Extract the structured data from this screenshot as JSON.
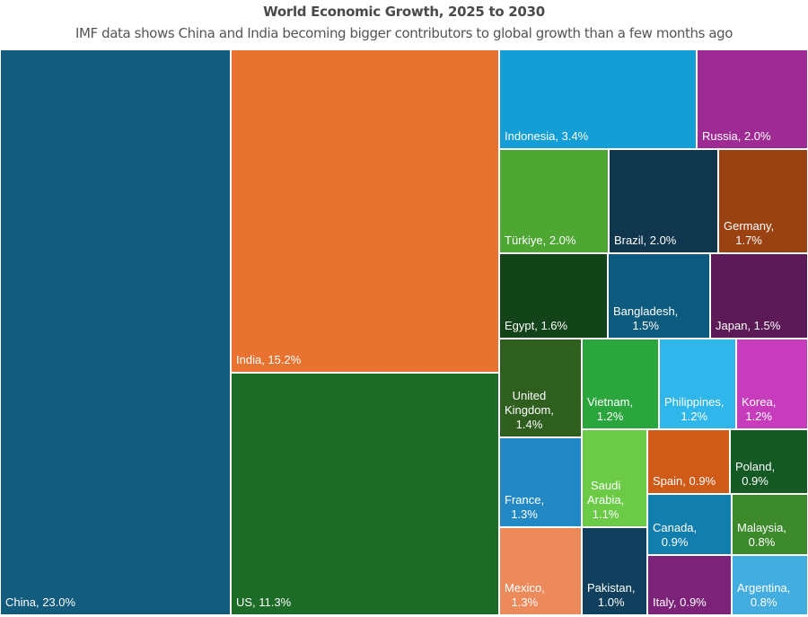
{
  "chart_data": {
    "type": "treemap",
    "title": "World Economic Growth, 2025 to 2030",
    "subtitle": "IMF data shows China and India becoming bigger contributors to global growth than a few months ago",
    "unit": "%",
    "items": [
      {
        "name": "China",
        "value": 23.0,
        "label": "China, 23.0%",
        "color": "#135C7E"
      },
      {
        "name": "India",
        "value": 15.2,
        "label": "India, 15.2%",
        "color": "#E87331"
      },
      {
        "name": "US",
        "value": 11.3,
        "label": "US, 11.3%",
        "color": "#1C6B27"
      },
      {
        "name": "Indonesia",
        "value": 3.4,
        "label": "Indonesia, 3.4%",
        "color": "#139ED6"
      },
      {
        "name": "Russia",
        "value": 2.0,
        "label": "Russia, 2.0%",
        "color": "#9E2A93"
      },
      {
        "name": "Türkiye",
        "value": 2.0,
        "label": "Türkiye, 2.0%",
        "color": "#4EA733"
      },
      {
        "name": "Brazil",
        "value": 2.0,
        "label": "Brazil, 2.0%",
        "color": "#10374D"
      },
      {
        "name": "Germany",
        "value": 1.7,
        "label": "Germany,\n1.7%",
        "color": "#9A4212"
      },
      {
        "name": "Egypt",
        "value": 1.6,
        "label": "Egypt, 1.6%",
        "color": "#124319"
      },
      {
        "name": "Bangladesh",
        "value": 1.5,
        "label": "Bangladesh,\n1.5%",
        "color": "#0C5A7E"
      },
      {
        "name": "Japan",
        "value": 1.5,
        "label": "Japan, 1.5%",
        "color": "#5C1A57"
      },
      {
        "name": "United Kingdom",
        "value": 1.4,
        "label": "United\nKingdom,\n1.4%",
        "color": "#2F5F1E"
      },
      {
        "name": "Vietnam",
        "value": 1.2,
        "label": "Vietnam,\n1.2%",
        "color": "#2BA53D"
      },
      {
        "name": "Philippines",
        "value": 1.2,
        "label": "Philippines,\n1.2%",
        "color": "#2FB6EA"
      },
      {
        "name": "Korea",
        "value": 1.2,
        "label": "Korea,\n1.2%",
        "color": "#C63CBC"
      },
      {
        "name": "France",
        "value": 1.3,
        "label": "France,\n1.3%",
        "color": "#2389C4"
      },
      {
        "name": "Saudi Arabia",
        "value": 1.1,
        "label": "Saudi\nArabia,\n1.1%",
        "color": "#6BCB47"
      },
      {
        "name": "Spain",
        "value": 0.9,
        "label": "Spain, 0.9%",
        "color": "#D05A18"
      },
      {
        "name": "Poland",
        "value": 0.9,
        "label": "Poland,\n0.9%",
        "color": "#155A24"
      },
      {
        "name": "Canada",
        "value": 0.9,
        "label": "Canada,\n0.9%",
        "color": "#127EAE"
      },
      {
        "name": "Malaysia",
        "value": 0.8,
        "label": "Malaysia,\n0.8%",
        "color": "#3D8A2D"
      },
      {
        "name": "Mexico",
        "value": 1.3,
        "label": "Mexico,\n1.3%",
        "color": "#EC8A5B"
      },
      {
        "name": "Pakistan",
        "value": 1.0,
        "label": "Pakistan,\n1.0%",
        "color": "#10405E"
      },
      {
        "name": "Italy",
        "value": 0.9,
        "label": "Italy, 0.9%",
        "color": "#7C2379"
      },
      {
        "name": "Argentina",
        "value": 0.8,
        "label": "Argentina,\n0.8%",
        "color": "#44ADE0"
      }
    ]
  }
}
